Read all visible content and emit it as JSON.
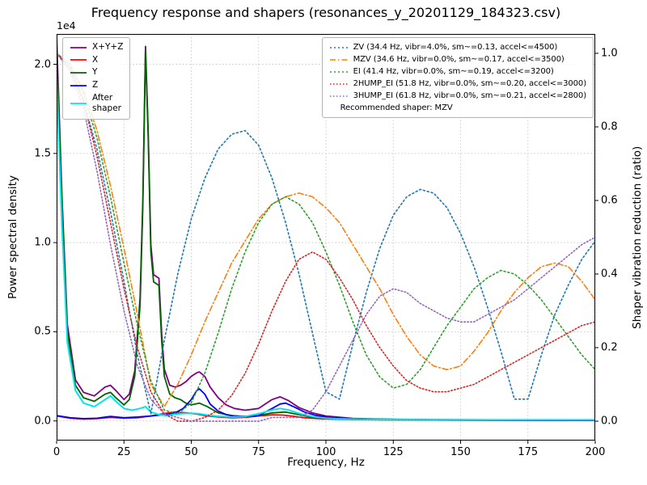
{
  "chart_data": {
    "type": "line",
    "title": "Frequency response and shapers (resonances_y_20201129_184323.csv)",
    "xlabel": "Frequency, Hz",
    "ylabel_left": "Power spectral density",
    "ylabel_right": "Shaper vibration reduction (ratio)",
    "offset_label": "1e4",
    "grid": true,
    "xlim": [
      0,
      200
    ],
    "ylim_left": [
      -1100,
      21700
    ],
    "ylim_right": [
      -0.0526,
      1.0526
    ],
    "xticks": {
      "values": [
        0,
        25,
        50,
        75,
        100,
        125,
        150,
        175,
        200
      ],
      "labels": [
        "0",
        "25",
        "50",
        "75",
        "100",
        "125",
        "150",
        "175",
        "200"
      ]
    },
    "yticks_left": {
      "values": [
        0,
        5000,
        10000,
        15000,
        20000
      ],
      "labels": [
        "0.0",
        "0.5",
        "1.0",
        "1.5",
        "2.0"
      ]
    },
    "yticks_right": {
      "values": [
        0,
        0.2,
        0.4,
        0.6,
        0.8,
        1.0
      ],
      "labels": [
        "0.0",
        "0.2",
        "0.4",
        "0.6",
        "0.8",
        "1.0"
      ]
    },
    "series": [
      {
        "name": "X+Y+Z",
        "axis": "left",
        "color": "#800080",
        "dash": "none",
        "width": 1.8,
        "x": [
          0,
          2,
          4,
          7,
          10,
          14,
          18,
          20,
          22,
          25,
          27,
          29,
          31,
          32,
          33,
          34,
          35,
          36,
          37,
          38,
          39,
          40,
          42,
          44,
          46,
          48,
          50,
          52,
          53,
          55,
          57,
          60,
          63,
          66,
          70,
          75,
          80,
          83,
          86,
          90,
          95,
          100,
          110,
          120,
          140,
          160,
          180,
          200
        ],
        "y": [
          21600,
          12500,
          5400,
          2300,
          1600,
          1400,
          1900,
          2000,
          1700,
          1200,
          1500,
          2800,
          6900,
          12400,
          21000,
          16300,
          9900,
          8200,
          8100,
          8000,
          4900,
          2900,
          2000,
          1900,
          2000,
          2200,
          2500,
          2700,
          2750,
          2500,
          1900,
          1300,
          900,
          700,
          600,
          700,
          1200,
          1350,
          1150,
          750,
          450,
          280,
          140,
          100,
          70,
          60,
          50,
          50
        ]
      },
      {
        "name": "X",
        "axis": "left",
        "color": "#ff0000",
        "dash": "none",
        "width": 1.8,
        "x": [
          0,
          5,
          10,
          15,
          20,
          25,
          30,
          35,
          40,
          44,
          48,
          52,
          56,
          60,
          65,
          70,
          75,
          80,
          84,
          88,
          92,
          100,
          110,
          120,
          140,
          160,
          180,
          200
        ],
        "y": [
          280,
          150,
          100,
          130,
          200,
          150,
          180,
          280,
          420,
          500,
          460,
          380,
          280,
          220,
          180,
          200,
          280,
          340,
          330,
          260,
          180,
          110,
          80,
          60,
          50,
          40,
          40,
          30
        ]
      },
      {
        "name": "Y",
        "axis": "left",
        "color": "#006400",
        "dash": "none",
        "width": 1.8,
        "x": [
          0,
          2,
          4,
          7,
          10,
          14,
          18,
          20,
          22,
          25,
          27,
          29,
          31,
          32,
          33,
          34,
          35,
          36,
          37,
          38,
          39,
          40,
          42,
          44,
          46,
          48,
          50,
          53,
          56,
          60,
          65,
          70,
          75,
          80,
          85,
          90,
          95,
          100,
          110,
          120,
          140,
          160,
          180,
          200
        ],
        "y": [
          21000,
          12000,
          5000,
          2000,
          1300,
          1100,
          1500,
          1600,
          1300,
          900,
          1200,
          2500,
          6500,
          12000,
          20800,
          16000,
          9500,
          7800,
          7700,
          7600,
          4500,
          2500,
          1500,
          1300,
          1200,
          1000,
          900,
          1000,
          800,
          450,
          300,
          250,
          300,
          450,
          500,
          350,
          200,
          140,
          90,
          70,
          50,
          40,
          40,
          40
        ]
      },
      {
        "name": "Z",
        "axis": "left",
        "color": "#0000ff",
        "dash": "none",
        "width": 1.8,
        "x": [
          0,
          5,
          10,
          15,
          20,
          25,
          30,
          35,
          40,
          44,
          47,
          50,
          52,
          53,
          55,
          57,
          60,
          63,
          66,
          70,
          75,
          80,
          83,
          85,
          88,
          92,
          96,
          100,
          110,
          120,
          140,
          160,
          180,
          200
        ],
        "y": [
          300,
          180,
          130,
          150,
          250,
          180,
          220,
          280,
          350,
          450,
          700,
          1200,
          1700,
          1800,
          1500,
          950,
          550,
          350,
          280,
          250,
          300,
          700,
          950,
          1000,
          800,
          500,
          320,
          220,
          120,
          90,
          60,
          50,
          40,
          40
        ]
      },
      {
        "name": "After shaper",
        "axis": "left",
        "color": "#00e5ee",
        "dash": "none",
        "width": 2,
        "x": [
          0,
          2,
          4,
          7,
          10,
          14,
          18,
          20,
          22,
          25,
          28,
          31,
          33,
          35,
          38,
          41,
          44,
          47,
          50,
          53,
          56,
          60,
          65,
          70,
          75,
          80,
          83,
          86,
          90,
          95,
          100,
          105,
          110,
          120,
          140,
          160,
          180,
          200
        ],
        "y": [
          19300,
          10800,
          4400,
          1700,
          1000,
          800,
          1200,
          1400,
          1100,
          700,
          600,
          700,
          800,
          500,
          350,
          300,
          380,
          420,
          430,
          400,
          330,
          260,
          220,
          250,
          400,
          620,
          700,
          620,
          420,
          240,
          150,
          120,
          100,
          80,
          70,
          60,
          60,
          60
        ]
      },
      {
        "name": "ZV",
        "axis": "right",
        "color": "#1f77b4",
        "dash": "2 3",
        "width": 1.6,
        "x": [
          0,
          5,
          10,
          15,
          20,
          25,
          30,
          35,
          40,
          45,
          50,
          55,
          60,
          65,
          70,
          75,
          80,
          85,
          90,
          95,
          100,
          105,
          110,
          115,
          120,
          125,
          130,
          135,
          140,
          145,
          150,
          155,
          160,
          165,
          170,
          175,
          180,
          185,
          190,
          195,
          200
        ],
        "y": [
          1.0,
          0.96,
          0.87,
          0.74,
          0.57,
          0.38,
          0.18,
          0.02,
          0.22,
          0.4,
          0.55,
          0.66,
          0.74,
          0.78,
          0.79,
          0.75,
          0.66,
          0.54,
          0.4,
          0.24,
          0.08,
          0.06,
          0.21,
          0.35,
          0.47,
          0.56,
          0.61,
          0.63,
          0.62,
          0.58,
          0.51,
          0.42,
          0.31,
          0.19,
          0.06,
          0.06,
          0.18,
          0.29,
          0.37,
          0.44,
          0.49
        ]
      },
      {
        "name": "MZV",
        "axis": "right",
        "color": "#ff7f0e",
        "dash": "7 3 1.5 3",
        "width": 1.6,
        "x": [
          0,
          5,
          10,
          15,
          20,
          25,
          30,
          35,
          40,
          45,
          50,
          55,
          60,
          65,
          70,
          75,
          80,
          85,
          90,
          95,
          100,
          105,
          110,
          115,
          120,
          125,
          130,
          135,
          140,
          145,
          150,
          155,
          160,
          165,
          170,
          175,
          180,
          185,
          190,
          195,
          200
        ],
        "y": [
          1.0,
          0.97,
          0.9,
          0.79,
          0.64,
          0.47,
          0.29,
          0.1,
          0.04,
          0.1,
          0.18,
          0.27,
          0.35,
          0.43,
          0.49,
          0.55,
          0.59,
          0.61,
          0.62,
          0.61,
          0.58,
          0.54,
          0.48,
          0.42,
          0.36,
          0.29,
          0.23,
          0.18,
          0.15,
          0.14,
          0.15,
          0.19,
          0.24,
          0.3,
          0.35,
          0.39,
          0.42,
          0.43,
          0.42,
          0.38,
          0.33
        ]
      },
      {
        "name": "EI",
        "axis": "right",
        "color": "#2ca02c",
        "dash": "2 3",
        "width": 1.6,
        "x": [
          0,
          5,
          10,
          15,
          20,
          25,
          30,
          35,
          40,
          45,
          50,
          55,
          60,
          65,
          70,
          75,
          80,
          85,
          90,
          95,
          100,
          105,
          110,
          115,
          120,
          125,
          130,
          135,
          140,
          145,
          150,
          155,
          160,
          165,
          170,
          175,
          180,
          185,
          190,
          195,
          200
        ],
        "y": [
          1.0,
          0.97,
          0.89,
          0.77,
          0.61,
          0.43,
          0.26,
          0.11,
          0.03,
          0.02,
          0.05,
          0.13,
          0.24,
          0.36,
          0.46,
          0.54,
          0.59,
          0.61,
          0.59,
          0.54,
          0.46,
          0.37,
          0.27,
          0.18,
          0.12,
          0.09,
          0.1,
          0.14,
          0.2,
          0.26,
          0.31,
          0.36,
          0.39,
          0.41,
          0.4,
          0.37,
          0.33,
          0.28,
          0.23,
          0.18,
          0.14
        ]
      },
      {
        "name": "2HUMP_EI",
        "axis": "right",
        "color": "#d62728",
        "dash": "1.5 2.5",
        "width": 1.6,
        "x": [
          0,
          5,
          10,
          15,
          20,
          25,
          30,
          35,
          40,
          45,
          50,
          55,
          60,
          65,
          70,
          75,
          80,
          85,
          90,
          95,
          100,
          105,
          110,
          115,
          120,
          125,
          130,
          135,
          140,
          145,
          150,
          155,
          160,
          165,
          170,
          175,
          180,
          185,
          190,
          195,
          200
        ],
        "y": [
          1.0,
          0.96,
          0.87,
          0.72,
          0.54,
          0.36,
          0.2,
          0.08,
          0.02,
          0.0,
          0.0,
          0.01,
          0.03,
          0.07,
          0.13,
          0.21,
          0.3,
          0.38,
          0.44,
          0.46,
          0.44,
          0.39,
          0.33,
          0.26,
          0.2,
          0.15,
          0.11,
          0.09,
          0.08,
          0.08,
          0.09,
          0.1,
          0.12,
          0.14,
          0.16,
          0.18,
          0.2,
          0.22,
          0.24,
          0.26,
          0.27
        ]
      },
      {
        "name": "3HUMP_EI",
        "axis": "right",
        "color": "#9467bd",
        "dash": "1.5 2.5",
        "width": 1.6,
        "x": [
          0,
          5,
          10,
          15,
          20,
          25,
          30,
          35,
          40,
          45,
          50,
          55,
          60,
          65,
          70,
          75,
          80,
          85,
          90,
          95,
          100,
          105,
          110,
          115,
          120,
          125,
          130,
          135,
          140,
          145,
          150,
          155,
          160,
          165,
          170,
          175,
          180,
          185,
          190,
          195,
          200
        ],
        "y": [
          1.0,
          0.95,
          0.85,
          0.68,
          0.48,
          0.3,
          0.15,
          0.06,
          0.02,
          0.01,
          0.0,
          0.0,
          0.0,
          0.0,
          0.0,
          0.0,
          0.01,
          0.01,
          0.01,
          0.03,
          0.08,
          0.15,
          0.22,
          0.29,
          0.34,
          0.36,
          0.35,
          0.32,
          0.3,
          0.28,
          0.27,
          0.27,
          0.29,
          0.31,
          0.33,
          0.36,
          0.39,
          0.42,
          0.45,
          0.48,
          0.5
        ]
      }
    ]
  },
  "legends": {
    "psd": {
      "items": [
        {
          "label": "X+Y+Z",
          "color": "#800080",
          "dash": "none"
        },
        {
          "label": "X",
          "color": "#ff0000",
          "dash": "none"
        },
        {
          "label": "Y",
          "color": "#006400",
          "dash": "none"
        },
        {
          "label": "Z",
          "color": "#0000ff",
          "dash": "none"
        },
        {
          "label": "After\nshaper",
          "color": "#00e5ee",
          "dash": "none"
        }
      ]
    },
    "shapers": {
      "items": [
        {
          "label": "ZV (34.4 Hz, vibr=4.0%, sm~=0.13, accel<=4500)",
          "color": "#1f77b4",
          "dash": "2 3"
        },
        {
          "label": "MZV (34.6 Hz, vibr=0.0%, sm~=0.17, accel<=3500)",
          "color": "#ff7f0e",
          "dash": "7 3 1.5 3"
        },
        {
          "label": "EI (41.4 Hz, vibr=0.0%, sm~=0.19, accel<=3200)",
          "color": "#2ca02c",
          "dash": "2 3"
        },
        {
          "label": "2HUMP_EI (51.8 Hz, vibr=0.0%, sm~=0.20, accel<=3000)",
          "color": "#d62728",
          "dash": "1.5 2.5"
        },
        {
          "label": "3HUMP_EI (61.8 Hz, vibr=0.0%, sm~=0.21, accel<=2800)",
          "color": "#9467bd",
          "dash": "1.5 2.5"
        }
      ],
      "note": "Recommended shaper: MZV"
    }
  }
}
